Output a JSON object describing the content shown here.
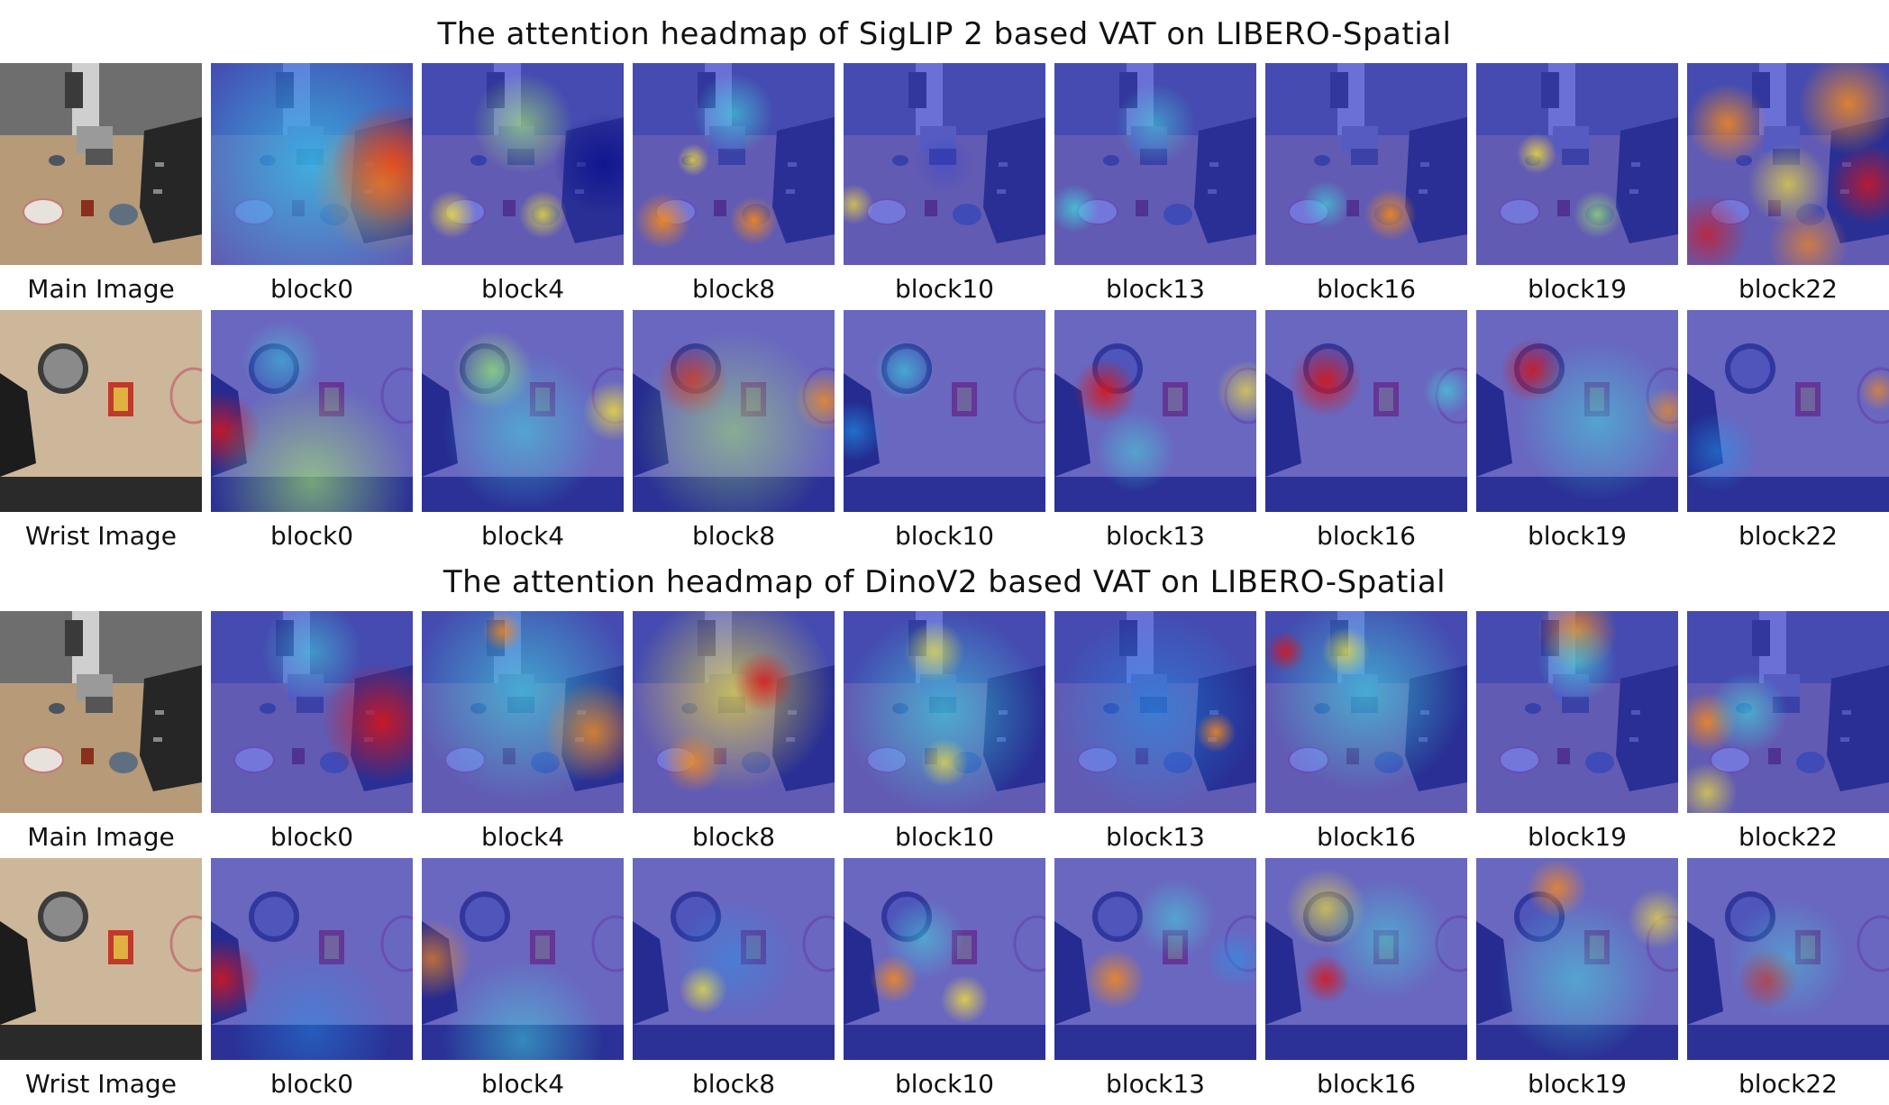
{
  "sections": [
    {
      "title": "The attention headmap of SigLIP 2 based VAT on LIBERO-Spatial",
      "rows": [
        {
          "source_label": "Main Image",
          "view": "main",
          "blocks": [
            "block0",
            "block4",
            "block8",
            "block10",
            "block13",
            "block16",
            "block19",
            "block22"
          ]
        },
        {
          "source_label": "Wrist Image",
          "view": "wrist",
          "blocks": [
            "block0",
            "block4",
            "block8",
            "block10",
            "block13",
            "block16",
            "block19",
            "block22"
          ]
        }
      ]
    },
    {
      "title": "The attention headmap of DinoV2 based VAT on LIBERO-Spatial",
      "rows": [
        {
          "source_label": "Main Image",
          "view": "main",
          "blocks": [
            "block0",
            "block4",
            "block8",
            "block10",
            "block13",
            "block16",
            "block19",
            "block22"
          ]
        },
        {
          "source_label": "Wrist Image",
          "view": "wrist",
          "blocks": [
            "block0",
            "block4",
            "block8",
            "block10",
            "block13",
            "block16",
            "block19",
            "block22"
          ]
        }
      ]
    }
  ],
  "colormap": [
    "#0a0f8f",
    "#2b35d8",
    "#1f9cf0",
    "#3fe0e0",
    "#a8f06a",
    "#f4e23a",
    "#f68a1e",
    "#d8161b"
  ]
}
